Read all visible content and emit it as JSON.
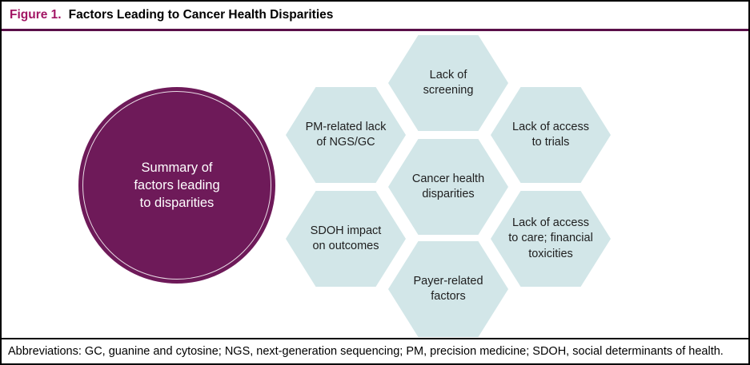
{
  "figure": {
    "label": "Figure 1.",
    "title": "Factors Leading to Cancer Health Disparities"
  },
  "summary_circle": {
    "text": "Summary of\nfactors leading\nto disparities"
  },
  "hexagons": [
    {
      "name": "lack-of-screening",
      "text": "Lack of\nscreening"
    },
    {
      "name": "pm-related-lack-of-ngs-gc",
      "text": "PM-related lack\nof NGS/GC"
    },
    {
      "name": "lack-of-access-to-trials",
      "text": "Lack of access\nto trials"
    },
    {
      "name": "cancer-health-disparities",
      "text": "Cancer health\ndisparities"
    },
    {
      "name": "sdoh-impact-on-outcomes",
      "text": "SDOH impact\non outcomes"
    },
    {
      "name": "lack-of-access-to-care-financial-toxicities",
      "text": "Lack of access\nto care; financial\ntoxicities"
    },
    {
      "name": "payer-related-factors",
      "text": "Payer-related\nfactors"
    }
  ],
  "footer": {
    "abbreviations": "Abbreviations: GC, guanine and cytosine; NGS, next-generation sequencing; PM, precision medicine; SDOH, social determinants of health."
  },
  "colors": {
    "figure_label_magenta": "#a21564",
    "header_rule_purple": "#5a0f49",
    "circle_fill_purple": "#6e1a59",
    "hexagon_fill_blue": "#d2e6e8",
    "border_black": "#000000"
  }
}
